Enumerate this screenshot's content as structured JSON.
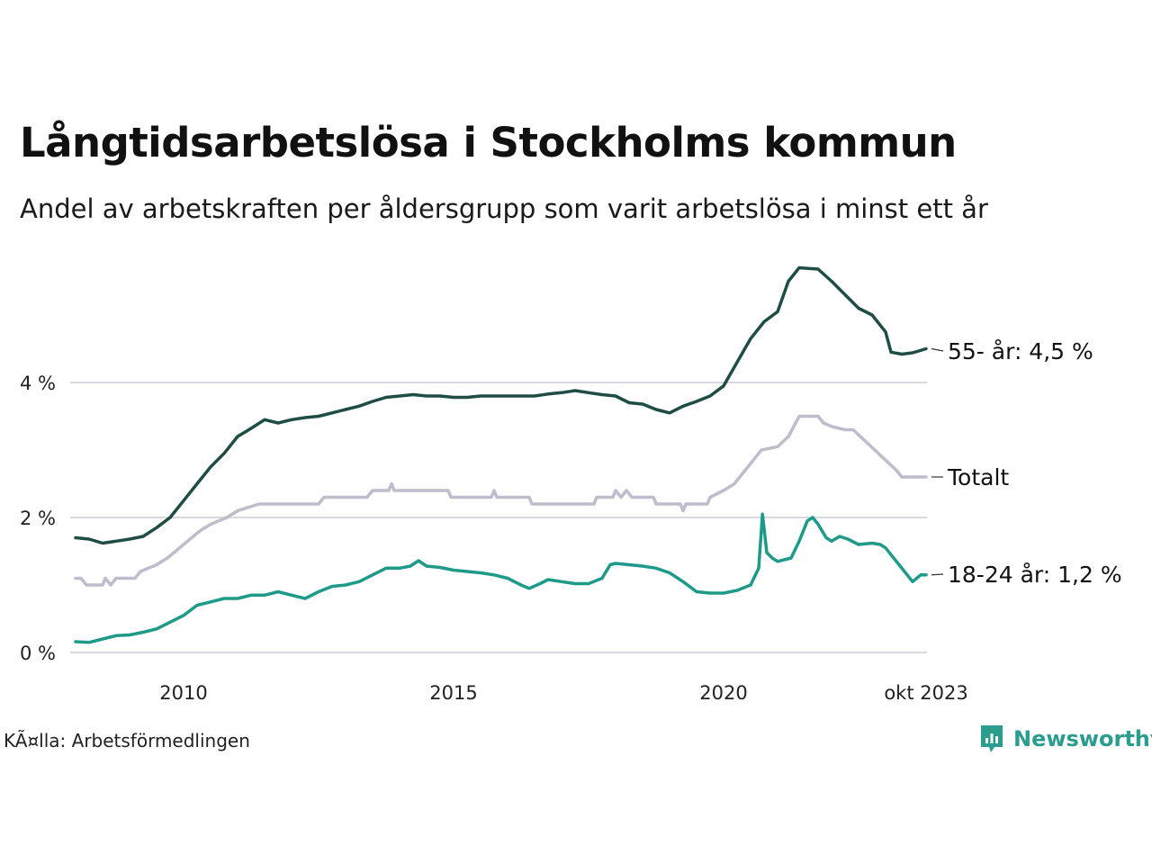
{
  "title": "Långtidsarbetslösa i Stockholms kommun",
  "subtitle": "Andel av arbetskraften per åldersgrupp som varit arbetslösa i minst ett år",
  "source": "KÃ¤lla: Arbetsförmedlingen",
  "logo": {
    "name": "Newsworthy",
    "icon": "newsworthy-logo-icon",
    "color": "#2a9d8f"
  },
  "chart_data": {
    "type": "line",
    "title": "Långtidsarbetslösa i Stockholms kommun",
    "xlabel": "",
    "ylabel": "",
    "x_range": [
      2008.0,
      2023.75
    ],
    "ylim": [
      0,
      6
    ],
    "grid": true,
    "y_ticks": [
      {
        "value": 0,
        "label": "0 %"
      },
      {
        "value": 2,
        "label": "2 %"
      },
      {
        "value": 4,
        "label": "4 %"
      }
    ],
    "x_ticks": [
      {
        "value": 2010,
        "label": "2010"
      },
      {
        "value": 2015,
        "label": "2015"
      },
      {
        "value": 2020,
        "label": "2020"
      },
      {
        "value": 2023.75,
        "label": "okt 2023"
      }
    ],
    "series": [
      {
        "name": "55- år",
        "end_label": "55- år: 4,5 %",
        "color": "#1f4d46",
        "points": [
          [
            2008.0,
            1.7
          ],
          [
            2008.25,
            1.68
          ],
          [
            2008.5,
            1.62
          ],
          [
            2008.75,
            1.65
          ],
          [
            2009.0,
            1.68
          ],
          [
            2009.25,
            1.72
          ],
          [
            2009.5,
            1.85
          ],
          [
            2009.75,
            2.0
          ],
          [
            2010.0,
            2.25
          ],
          [
            2010.25,
            2.5
          ],
          [
            2010.5,
            2.75
          ],
          [
            2010.75,
            2.95
          ],
          [
            2011.0,
            3.2
          ],
          [
            2011.25,
            3.32
          ],
          [
            2011.5,
            3.45
          ],
          [
            2011.75,
            3.4
          ],
          [
            2012.0,
            3.45
          ],
          [
            2012.25,
            3.48
          ],
          [
            2012.5,
            3.5
          ],
          [
            2012.75,
            3.55
          ],
          [
            2013.0,
            3.6
          ],
          [
            2013.25,
            3.65
          ],
          [
            2013.5,
            3.72
          ],
          [
            2013.75,
            3.78
          ],
          [
            2014.0,
            3.8
          ],
          [
            2014.25,
            3.82
          ],
          [
            2014.5,
            3.8
          ],
          [
            2014.75,
            3.8
          ],
          [
            2015.0,
            3.78
          ],
          [
            2015.25,
            3.78
          ],
          [
            2015.5,
            3.8
          ],
          [
            2015.75,
            3.8
          ],
          [
            2016.0,
            3.8
          ],
          [
            2016.25,
            3.8
          ],
          [
            2016.5,
            3.8
          ],
          [
            2016.75,
            3.83
          ],
          [
            2017.0,
            3.85
          ],
          [
            2017.25,
            3.88
          ],
          [
            2017.5,
            3.85
          ],
          [
            2017.75,
            3.82
          ],
          [
            2018.0,
            3.8
          ],
          [
            2018.25,
            3.7
          ],
          [
            2018.5,
            3.68
          ],
          [
            2018.75,
            3.6
          ],
          [
            2019.0,
            3.55
          ],
          [
            2019.25,
            3.65
          ],
          [
            2019.5,
            3.72
          ],
          [
            2019.75,
            3.8
          ],
          [
            2020.0,
            3.95
          ],
          [
            2020.25,
            4.3
          ],
          [
            2020.5,
            4.65
          ],
          [
            2020.75,
            4.9
          ],
          [
            2021.0,
            5.05
          ],
          [
            2021.2,
            5.5
          ],
          [
            2021.4,
            5.7
          ],
          [
            2021.75,
            5.68
          ],
          [
            2022.0,
            5.5
          ],
          [
            2022.25,
            5.3
          ],
          [
            2022.5,
            5.1
          ],
          [
            2022.75,
            5.0
          ],
          [
            2022.9,
            4.85
          ],
          [
            2023.0,
            4.75
          ],
          [
            2023.1,
            4.45
          ],
          [
            2023.3,
            4.42
          ],
          [
            2023.5,
            4.44
          ],
          [
            2023.75,
            4.5
          ]
        ]
      },
      {
        "name": "Totalt",
        "end_label": "Totalt",
        "color": "#bfbccb",
        "points": [
          [
            2008.0,
            1.1
          ],
          [
            2008.1,
            1.1
          ],
          [
            2008.2,
            1.0
          ],
          [
            2008.5,
            1.0
          ],
          [
            2008.55,
            1.1
          ],
          [
            2008.65,
            1.0
          ],
          [
            2008.75,
            1.1
          ],
          [
            2009.1,
            1.1
          ],
          [
            2009.2,
            1.2
          ],
          [
            2009.5,
            1.3
          ],
          [
            2009.7,
            1.4
          ],
          [
            2010.0,
            1.6
          ],
          [
            2010.3,
            1.8
          ],
          [
            2010.5,
            1.9
          ],
          [
            2010.8,
            2.0
          ],
          [
            2011.0,
            2.1
          ],
          [
            2011.4,
            2.2
          ],
          [
            2012.5,
            2.2
          ],
          [
            2012.6,
            2.3
          ],
          [
            2013.4,
            2.3
          ],
          [
            2013.5,
            2.4
          ],
          [
            2013.8,
            2.4
          ],
          [
            2013.85,
            2.5
          ],
          [
            2013.9,
            2.4
          ],
          [
            2014.9,
            2.4
          ],
          [
            2014.95,
            2.3
          ],
          [
            2015.7,
            2.3
          ],
          [
            2015.75,
            2.4
          ],
          [
            2015.8,
            2.3
          ],
          [
            2016.4,
            2.3
          ],
          [
            2016.45,
            2.2
          ],
          [
            2017.6,
            2.2
          ],
          [
            2017.65,
            2.3
          ],
          [
            2017.95,
            2.3
          ],
          [
            2018.0,
            2.4
          ],
          [
            2018.1,
            2.3
          ],
          [
            2018.2,
            2.4
          ],
          [
            2018.3,
            2.3
          ],
          [
            2018.7,
            2.3
          ],
          [
            2018.75,
            2.2
          ],
          [
            2019.2,
            2.2
          ],
          [
            2019.25,
            2.1
          ],
          [
            2019.3,
            2.2
          ],
          [
            2019.7,
            2.2
          ],
          [
            2019.75,
            2.3
          ],
          [
            2020.0,
            2.4
          ],
          [
            2020.2,
            2.5
          ],
          [
            2020.4,
            2.7
          ],
          [
            2020.7,
            3.0
          ],
          [
            2021.0,
            3.05
          ],
          [
            2021.2,
            3.2
          ],
          [
            2021.4,
            3.5
          ],
          [
            2021.75,
            3.5
          ],
          [
            2021.85,
            3.4
          ],
          [
            2022.0,
            3.35
          ],
          [
            2022.25,
            3.3
          ],
          [
            2022.4,
            3.3
          ],
          [
            2022.6,
            3.15
          ],
          [
            2022.8,
            3.0
          ],
          [
            2023.0,
            2.85
          ],
          [
            2023.2,
            2.7
          ],
          [
            2023.3,
            2.6
          ],
          [
            2023.75,
            2.6
          ]
        ]
      },
      {
        "name": "18-24 år",
        "end_label": "18-24 år: 1,2 %",
        "color": "#1d9b88",
        "points": [
          [
            2008.0,
            0.16
          ],
          [
            2008.25,
            0.15
          ],
          [
            2008.5,
            0.2
          ],
          [
            2008.75,
            0.25
          ],
          [
            2009.0,
            0.26
          ],
          [
            2009.25,
            0.3
          ],
          [
            2009.5,
            0.35
          ],
          [
            2009.75,
            0.45
          ],
          [
            2010.0,
            0.55
          ],
          [
            2010.25,
            0.7
          ],
          [
            2010.5,
            0.75
          ],
          [
            2010.75,
            0.8
          ],
          [
            2011.0,
            0.8
          ],
          [
            2011.25,
            0.85
          ],
          [
            2011.5,
            0.85
          ],
          [
            2011.75,
            0.9
          ],
          [
            2012.0,
            0.85
          ],
          [
            2012.25,
            0.8
          ],
          [
            2012.5,
            0.9
          ],
          [
            2012.75,
            0.98
          ],
          [
            2013.0,
            1.0
          ],
          [
            2013.25,
            1.05
          ],
          [
            2013.5,
            1.15
          ],
          [
            2013.75,
            1.25
          ],
          [
            2014.0,
            1.25
          ],
          [
            2014.2,
            1.28
          ],
          [
            2014.35,
            1.36
          ],
          [
            2014.5,
            1.28
          ],
          [
            2014.75,
            1.26
          ],
          [
            2015.0,
            1.22
          ],
          [
            2015.25,
            1.2
          ],
          [
            2015.5,
            1.18
          ],
          [
            2015.75,
            1.15
          ],
          [
            2016.0,
            1.1
          ],
          [
            2016.25,
            1.0
          ],
          [
            2016.4,
            0.95
          ],
          [
            2016.6,
            1.02
          ],
          [
            2016.75,
            1.08
          ],
          [
            2017.0,
            1.05
          ],
          [
            2017.25,
            1.02
          ],
          [
            2017.5,
            1.02
          ],
          [
            2017.75,
            1.1
          ],
          [
            2017.9,
            1.3
          ],
          [
            2018.0,
            1.32
          ],
          [
            2018.25,
            1.3
          ],
          [
            2018.5,
            1.28
          ],
          [
            2018.75,
            1.25
          ],
          [
            2019.0,
            1.18
          ],
          [
            2019.25,
            1.05
          ],
          [
            2019.5,
            0.9
          ],
          [
            2019.75,
            0.88
          ],
          [
            2020.0,
            0.88
          ],
          [
            2020.25,
            0.92
          ],
          [
            2020.5,
            1.0
          ],
          [
            2020.65,
            1.25
          ],
          [
            2020.72,
            2.05
          ],
          [
            2020.8,
            1.48
          ],
          [
            2020.9,
            1.4
          ],
          [
            2021.0,
            1.35
          ],
          [
            2021.25,
            1.4
          ],
          [
            2021.4,
            1.65
          ],
          [
            2021.55,
            1.95
          ],
          [
            2021.65,
            2.0
          ],
          [
            2021.75,
            1.9
          ],
          [
            2021.9,
            1.7
          ],
          [
            2022.0,
            1.65
          ],
          [
            2022.15,
            1.72
          ],
          [
            2022.3,
            1.68
          ],
          [
            2022.5,
            1.6
          ],
          [
            2022.75,
            1.62
          ],
          [
            2022.9,
            1.6
          ],
          [
            2023.0,
            1.55
          ],
          [
            2023.2,
            1.35
          ],
          [
            2023.4,
            1.15
          ],
          [
            2023.5,
            1.05
          ],
          [
            2023.65,
            1.15
          ],
          [
            2023.75,
            1.15
          ]
        ]
      }
    ]
  }
}
